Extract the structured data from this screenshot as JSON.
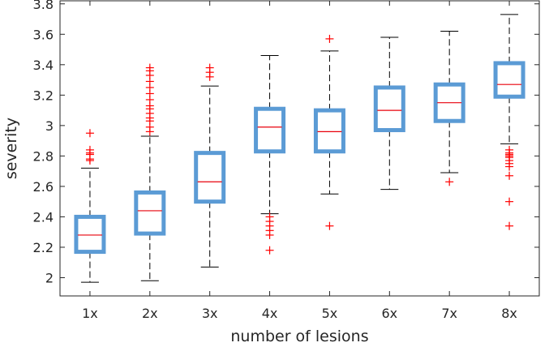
{
  "chart_data": {
    "type": "box",
    "xlabel": "number of lesions",
    "ylabel": "severity",
    "ylim": [
      1.88,
      3.82
    ],
    "yticks": [
      2,
      2.2,
      2.4,
      2.6,
      2.8,
      3,
      3.2,
      3.4,
      3.6,
      3.8
    ],
    "ytick_labels": [
      "2",
      "2.2",
      "2.4",
      "2.6",
      "2.8",
      "3",
      "3.2",
      "3.4",
      "3.6",
      "3.8"
    ],
    "categories": [
      "1x",
      "2x",
      "3x",
      "4x",
      "5x",
      "6x",
      "7x",
      "8x"
    ],
    "grid": false,
    "colors": {
      "box": "#5b9bd5",
      "median": "#e8000b",
      "whisker": "#000000",
      "outlier": "#ff0000"
    },
    "boxes": [
      {
        "category": "1x",
        "whisker_low": 1.97,
        "q1": 2.17,
        "median": 2.28,
        "q3": 2.4,
        "whisker_high": 2.72,
        "outliers": [
          2.95,
          2.84,
          2.82,
          2.81,
          2.78,
          2.77
        ]
      },
      {
        "category": "2x",
        "whisker_low": 1.98,
        "q1": 2.29,
        "median": 2.44,
        "q3": 2.56,
        "whisker_high": 2.93,
        "outliers": [
          3.38,
          3.36,
          3.33,
          3.29,
          3.25,
          3.21,
          3.17,
          3.13,
          3.11,
          3.08,
          3.05,
          3.03,
          2.99,
          2.96
        ]
      },
      {
        "category": "3x",
        "whisker_low": 2.07,
        "q1": 2.5,
        "median": 2.63,
        "q3": 2.82,
        "whisker_high": 3.26,
        "outliers": [
          3.38,
          3.35,
          3.32
        ]
      },
      {
        "category": "4x",
        "whisker_low": 2.42,
        "q1": 2.83,
        "median": 2.99,
        "q3": 3.11,
        "whisker_high": 3.46,
        "outliers": [
          2.4,
          2.37,
          2.34,
          2.31,
          2.28,
          2.18
        ]
      },
      {
        "category": "5x",
        "whisker_low": 2.55,
        "q1": 2.83,
        "median": 2.96,
        "q3": 3.1,
        "whisker_high": 3.49,
        "outliers": [
          3.57,
          2.34
        ]
      },
      {
        "category": "6x",
        "whisker_low": 2.58,
        "q1": 2.97,
        "median": 3.1,
        "q3": 3.25,
        "whisker_high": 3.58,
        "outliers": []
      },
      {
        "category": "7x",
        "whisker_low": 2.69,
        "q1": 3.03,
        "median": 3.15,
        "q3": 3.27,
        "whisker_high": 3.62,
        "outliers": [
          2.63
        ]
      },
      {
        "category": "8x",
        "whisker_low": 2.88,
        "q1": 3.19,
        "median": 3.27,
        "q3": 3.41,
        "whisker_high": 3.73,
        "outliers": [
          2.84,
          2.82,
          2.81,
          2.8,
          2.79,
          2.77,
          2.75,
          2.73,
          2.67,
          2.5,
          2.34
        ]
      }
    ]
  }
}
